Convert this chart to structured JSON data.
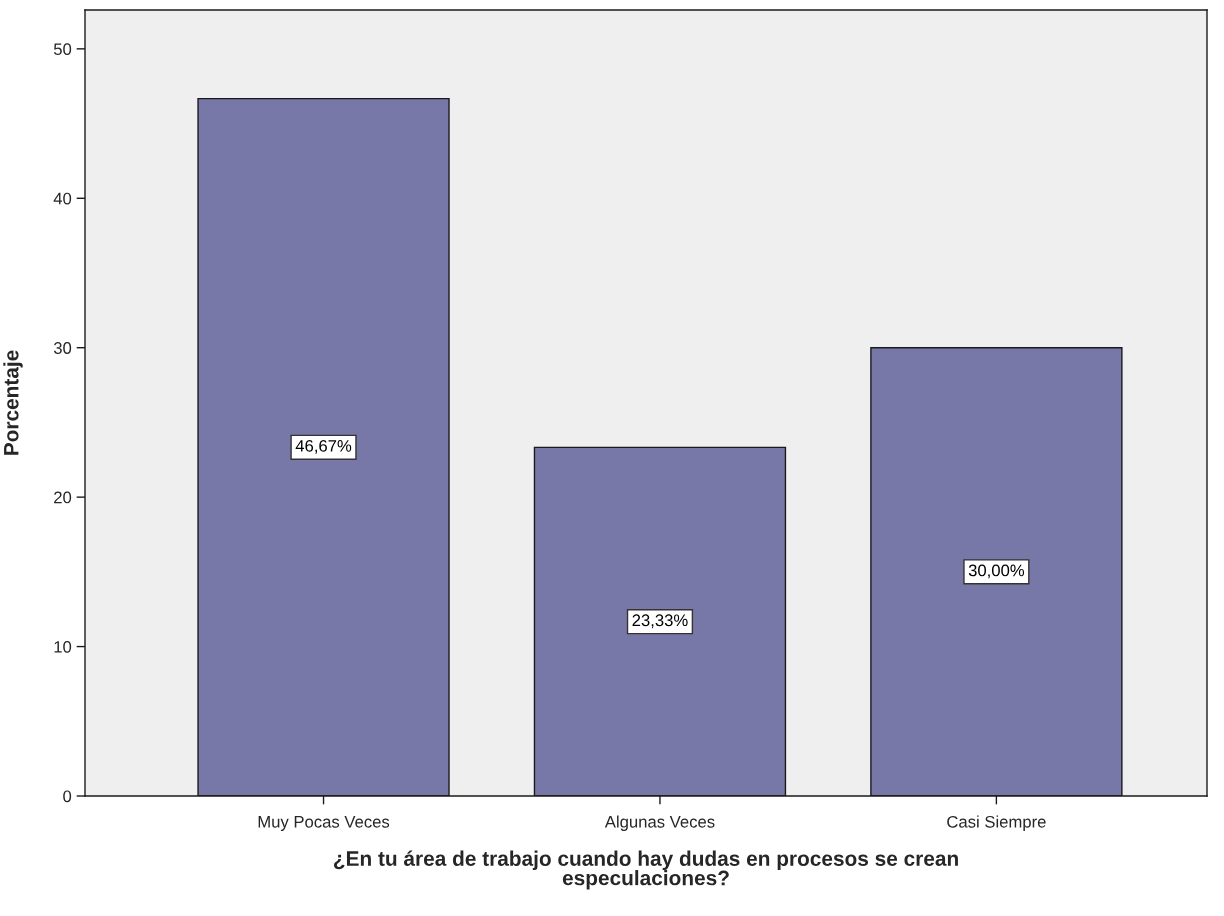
{
  "chart_data": {
    "type": "bar",
    "xlabel": "¿En tu área de trabajo cuando hay dudas en procesos se crean\nespeculaciones?",
    "ylabel": "Porcentaje",
    "categories": [
      "Muy Pocas Veces",
      "Algunas Veces",
      "Casi Siempre"
    ],
    "values": [
      46.67,
      23.33,
      30.0
    ],
    "value_labels": [
      "46,67%",
      "23,33%",
      "30,00%"
    ],
    "color": "#7878a8",
    "ylim": [
      0,
      52.6
    ],
    "yticks": [
      0,
      10,
      20,
      30,
      40,
      50
    ],
    "grid": false,
    "legend": false
  }
}
